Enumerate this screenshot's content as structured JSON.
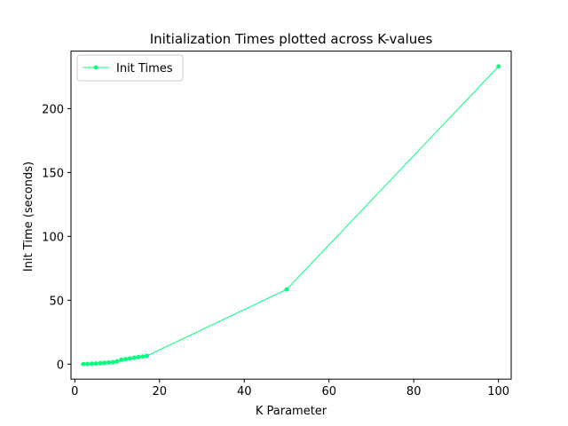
{
  "chart_data": {
    "type": "line",
    "title": "Initialization Times plotted across K-values",
    "xlabel": "K Parameter",
    "ylabel": "Init Time (seconds)",
    "xlim": [
      -0.9,
      103
    ],
    "ylim": [
      -11.7,
      245
    ],
    "xticks": [
      0,
      20,
      40,
      60,
      80,
      100
    ],
    "yticks": [
      0,
      50,
      100,
      150,
      200
    ],
    "grid": false,
    "legend_position": "top-left",
    "series": [
      {
        "name": "Init Times",
        "color": "#00ff7f",
        "marker": "circle",
        "x": [
          2,
          3,
          4,
          5,
          6,
          7,
          8,
          9,
          10,
          11,
          12,
          13,
          14,
          15,
          16,
          17,
          50,
          100
        ],
        "y": [
          0.1,
          0.2,
          0.3,
          0.5,
          0.8,
          1.0,
          1.4,
          1.6,
          2.2,
          3.5,
          4.0,
          4.5,
          5.0,
          5.5,
          6.0,
          6.5,
          58.5,
          233
        ]
      }
    ]
  }
}
